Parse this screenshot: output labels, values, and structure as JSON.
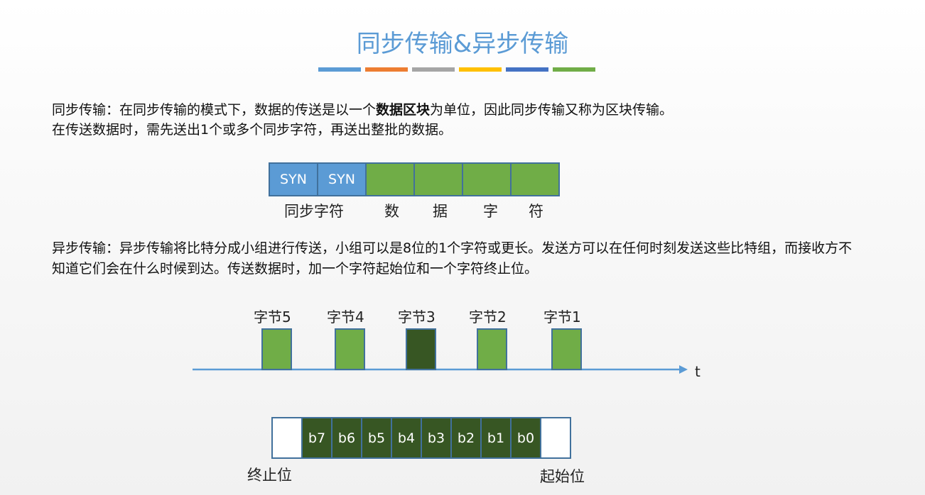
{
  "title": "同步传输&异步传输",
  "title_bar_colors": [
    "#5b9bd5",
    "#ed7d31",
    "#a5a5a5",
    "#ffc000",
    "#4472c4",
    "#70ad47"
  ],
  "sync": {
    "text_pre": "同步传输：在同步传输的模式下，数据的传送是以一个",
    "text_bold": "数据区块",
    "text_post": "为单位，因此同步传输又称为区块传输。",
    "text_line2": "在传送数据时，需先送出1个或多个同步字符，再送出整批的数据。",
    "frame_cells": [
      "SYN",
      "SYN",
      "",
      "",
      "",
      ""
    ],
    "labels": [
      "同步字符",
      "数",
      "据",
      "字",
      "符"
    ]
  },
  "async": {
    "text": "异步传输：异步传输将比特分成小组进行传送，小组可以是8位的1个字符或更长。发送方可以在任何时刻发送这些比特组，而接收方不知道它们会在什么时候到达。传送数据时，加一个字符起始位和一个字符终止位。",
    "bytes": [
      "字节5",
      "字节4",
      "字节3",
      "字节2",
      "字节1"
    ],
    "highlighted_byte": "字节3",
    "axis_label": "t",
    "bits": [
      "",
      "b7",
      "b6",
      "b5",
      "b4",
      "b3",
      "b2",
      "b1",
      "b0",
      ""
    ],
    "stop_label": "终止位",
    "start_label": "起始位"
  },
  "colors": {
    "blue": "#5b9bd5",
    "green": "#70ad47",
    "dark_green": "#375623",
    "accent": "#5b9bd5"
  }
}
